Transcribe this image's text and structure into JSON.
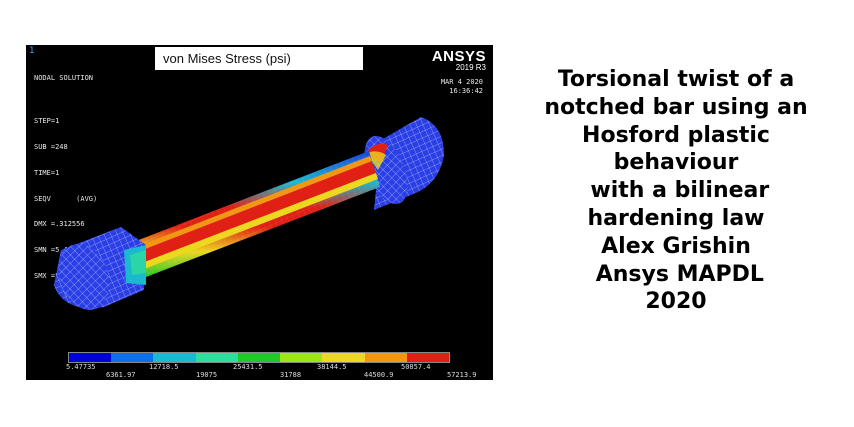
{
  "viewport": {
    "window_number": "1",
    "title": "von Mises Stress (psi)",
    "info_lines": [
      "NODAL SOLUTION",
      "",
      "STEP=1",
      "SUB =248",
      "TIME=1",
      "SEQV      (AVG)",
      "DMX =.312556",
      "SMN =5.47735",
      "SMX =57213.9"
    ],
    "brand": "ANSYS",
    "version": "2019 R3",
    "date": "MAR  4 2020",
    "time": "16:36:42"
  },
  "legend": {
    "colors": [
      "#0000d8",
      "#0f6fe4",
      "#1ab9cf",
      "#2fdc9c",
      "#22c72b",
      "#9be51a",
      "#ecd81e",
      "#f29714",
      "#e02014"
    ],
    "labels_top": [
      "5.47735",
      "12718.5",
      "25431.5",
      "38144.5",
      "50857.4"
    ],
    "labels_bottom": [
      "6361.97",
      "19075",
      "31788",
      "44500.9",
      "57213.9"
    ]
  },
  "caption": {
    "lines": [
      "Torsional twist of a",
      "notched bar using an",
      "Hosford plastic",
      "behaviour",
      " with a bilinear",
      "hardening law",
      "Alex Grishin",
      " Ansys MAPDL",
      "2020"
    ]
  }
}
